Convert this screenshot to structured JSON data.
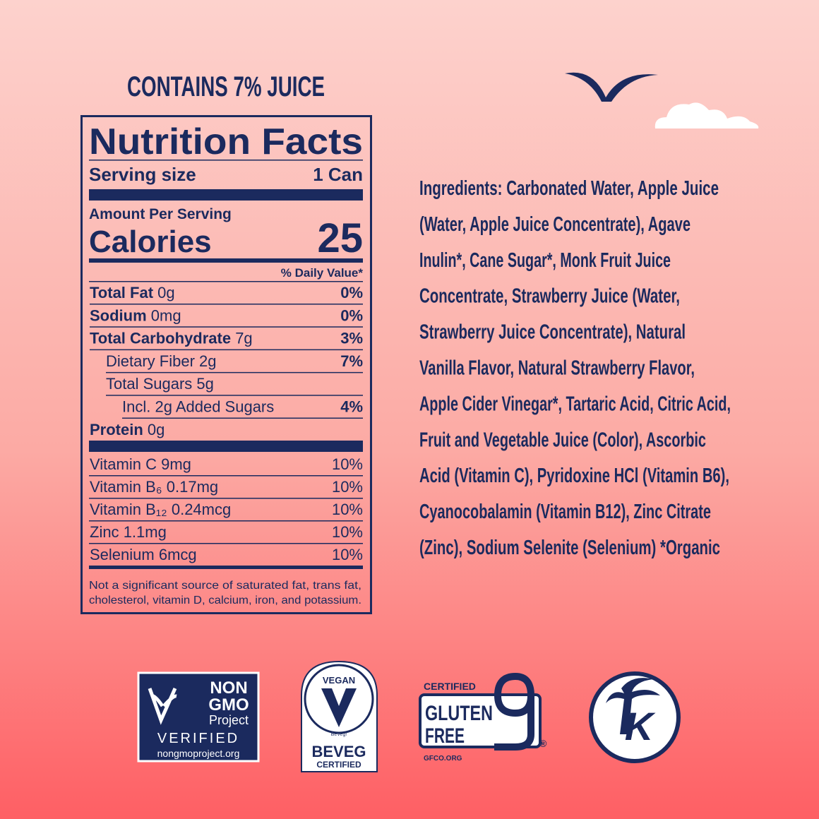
{
  "header": {
    "juice_claim": "CONTAINS 7% JUICE"
  },
  "nutrition_facts": {
    "title": "Nutrition Facts",
    "serving_size_label": "Serving size",
    "serving_size": "1 Can",
    "amount_per_serving": "Amount Per Serving",
    "calories_label": "Calories",
    "calories": 25,
    "daily_value_header": "% Daily Value*",
    "nutrients": [
      {
        "name": "Total Fat",
        "amount": "0g",
        "daily_value": "0%"
      },
      {
        "name": "Sodium",
        "amount": "0mg",
        "daily_value": "0%"
      },
      {
        "name": "Total Carbohydrate",
        "amount": "7g",
        "daily_value": "3%"
      },
      {
        "name": "Dietary Fiber",
        "amount": "2g",
        "daily_value": "7%"
      },
      {
        "name": "Total Sugars",
        "amount": "5g"
      },
      {
        "name": "Incl. 2g Added Sugars",
        "daily_value": "4%"
      },
      {
        "name": "Protein",
        "amount": "0g"
      }
    ],
    "vitamins": [
      {
        "name": "Vitamin C",
        "amount": "9mg",
        "daily_value": "10%"
      },
      {
        "name": "Vitamin B₆",
        "amount": "0.17mg",
        "daily_value": "10%"
      },
      {
        "name": "Vitamin B₁₂",
        "amount": "0.24mcg",
        "daily_value": "10%"
      },
      {
        "name": "Zinc",
        "amount": "1.1mg",
        "daily_value": "10%"
      },
      {
        "name": "Selenium",
        "amount": "6mcg",
        "daily_value": "10%"
      }
    ],
    "footnote_lines": [
      "Not a significant source of saturated fat, trans fat,",
      "cholesterol, vitamin D, calcium, iron, and potassium."
    ]
  },
  "ingredients": {
    "lines": [
      "Ingredients: Carbonated Water, Apple Juice",
      "(Water, Apple Juice Concentrate), Agave",
      "Inulin*, Cane Sugar*, Monk Fruit Juice",
      "Concentrate, Strawberry Juice (Water,",
      "Strawberry Juice Concentrate), Natural",
      "Vanilla Flavor, Natural Strawberry Flavor,",
      "Apple Cider Vinegar*, Tartaric Acid, Citric Acid,",
      "Fruit and Vegetable Juice (Color), Ascorbic",
      "Acid (Vitamin C), Pyridoxine HCl (Vitamin B6),",
      "Cyanocobalamin (Vitamin B12), Zinc Citrate",
      "(Zinc), Sodium Selenite (Selenium)  *Organic"
    ]
  },
  "badges": {
    "non_gmo": {
      "line1": "NON",
      "line2": "GMO",
      "line3": "Project",
      "line4": "VERIFIED",
      "url": "nongmoproject.org"
    },
    "vegan": {
      "top": "VEGAN",
      "small": "BeVeg!",
      "brand": "BEVEG",
      "bottom": "CERTIFIED"
    },
    "gluten_free": {
      "top": "CERTIFIED",
      "line1": "GLUTEN",
      "line2": "FREE",
      "mark": "®",
      "url": "GFCO.ORG"
    },
    "kosher": {
      "letter": "K"
    }
  }
}
